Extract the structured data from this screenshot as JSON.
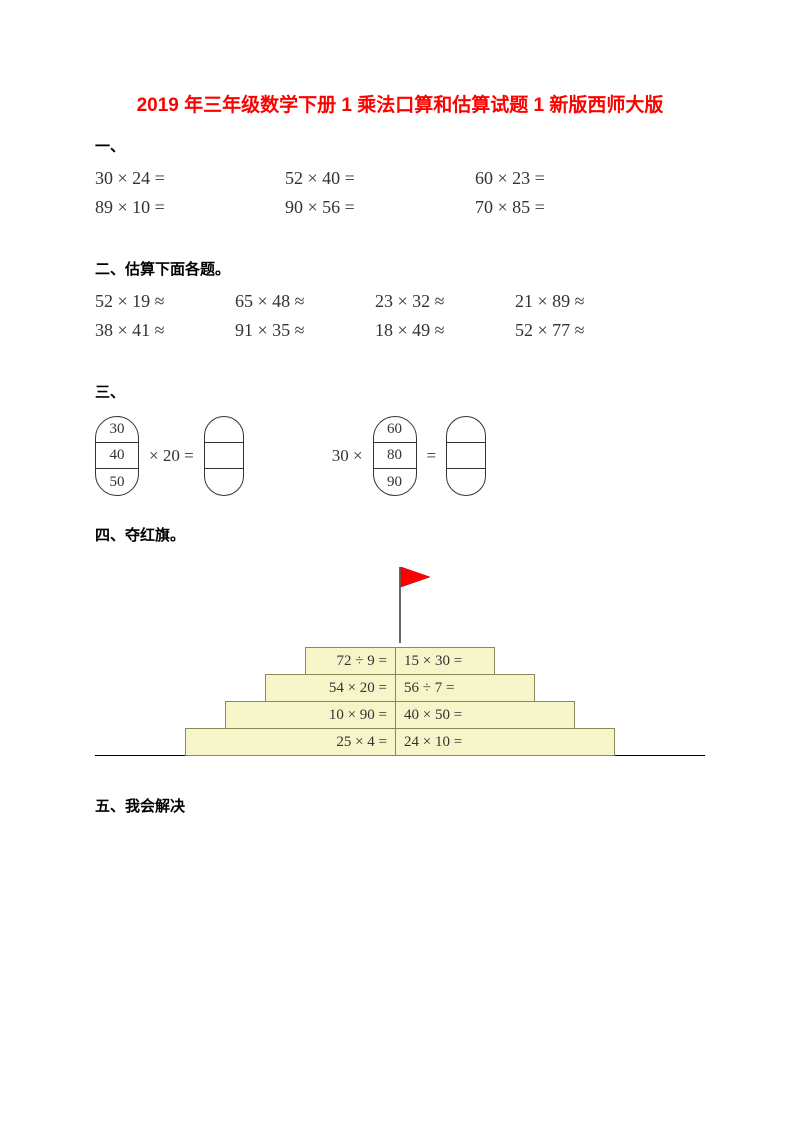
{
  "title": "2019 年三年级数学下册 1 乘法口算和估算试题 1 新版西师大版",
  "sections": {
    "s1_label": "一、",
    "s1": {
      "r1": {
        "c1": "30 × 24 =",
        "c2": "52 × 40 =",
        "c3": "60 × 23 ="
      },
      "r2": {
        "c1": "89 × 10 =",
        "c2": "90 × 56 =",
        "c3": "70 × 85 ="
      }
    },
    "s2_label": "二、估算下面各题。",
    "s2": {
      "r1": {
        "c1": "52 × 19 ≈",
        "c2": "65 × 48 ≈",
        "c3": "23 × 32 ≈",
        "c4": "21 × 89 ≈"
      },
      "r2": {
        "c1": "38 × 41 ≈",
        "c2": "91 × 35 ≈",
        "c3": "18 × 49 ≈",
        "c4": "52 × 77 ≈"
      }
    },
    "s3_label": "三、",
    "s3": {
      "left": {
        "a": "30",
        "b": "40",
        "c": "50",
        "op": "× 20 ="
      },
      "right": {
        "pre": "30 ×",
        "a": "60",
        "b": "80",
        "c": "90",
        "op": "="
      }
    },
    "s4_label": "四、夺红旗。",
    "s4": {
      "rows": [
        {
          "l": "72 ÷ 9 =",
          "r": "15 × 30 =",
          "lw": 90,
          "rw": 100
        },
        {
          "l": "54 × 20 =",
          "r": "56 ÷ 7 =",
          "lw": 130,
          "rw": 140
        },
        {
          "l": "10 × 90 =",
          "r": "40 × 50 =",
          "lw": 170,
          "rw": 180
        },
        {
          "l": "25 × 4 =",
          "r": "24 × 10 =",
          "lw": 210,
          "rw": 220
        }
      ],
      "pole_height": 112,
      "pole_top_offset": 0,
      "flag_color": "#ff0000",
      "step_bg": "#f6f4c9",
      "step_border": "#8a8a55"
    },
    "s5_label": "五、我会解决"
  }
}
